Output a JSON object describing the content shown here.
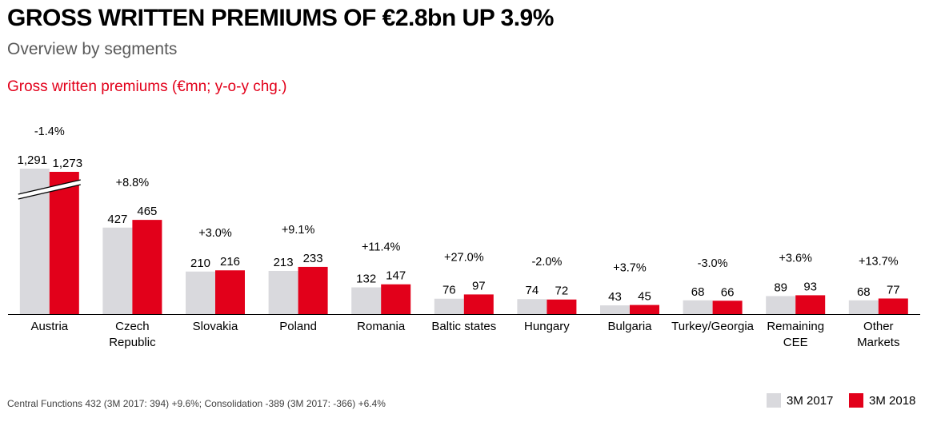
{
  "header": {
    "title": "GROSS WRITTEN PREMIUMS OF €2.8bn UP 3.9%",
    "subtitle": "Overview by segments"
  },
  "section_title": "Gross written premiums (€mn; y-o-y chg.)",
  "footnote": "Central Functions 432 (3M 2017: 394) +9.6%; Consolidation -389 (3M 2017: -366) +6.4%",
  "colors": {
    "series_2017": "#d9d9dd",
    "series_2018": "#e2001a",
    "section_title": "#e2001a"
  },
  "chart_data": {
    "type": "bar",
    "categories": [
      [
        "Austria"
      ],
      [
        "Czech",
        "Republic"
      ],
      [
        "Slovakia"
      ],
      [
        "Poland"
      ],
      [
        "Romania"
      ],
      [
        "Baltic states"
      ],
      [
        "Hungary"
      ],
      [
        "Bulgaria"
      ],
      [
        "Turkey/Georgia"
      ],
      [
        "Remaining",
        "CEE"
      ],
      [
        "Other",
        "Markets"
      ]
    ],
    "series": [
      {
        "name": "3M 2017",
        "values": [
          1291,
          427,
          210,
          213,
          132,
          76,
          74,
          43,
          68,
          89,
          68
        ],
        "labels": [
          "1,291",
          "427",
          "210",
          "213",
          "132",
          "76",
          "74",
          "43",
          "68",
          "89",
          "68"
        ]
      },
      {
        "name": "3M 2018",
        "values": [
          1273,
          465,
          216,
          233,
          147,
          97,
          72,
          45,
          66,
          93,
          77
        ],
        "labels": [
          "1,273",
          "465",
          "216",
          "233",
          "147",
          "97",
          "72",
          "45",
          "66",
          "93",
          "77"
        ]
      }
    ],
    "changes": [
      "-1.4%",
      "+8.8%",
      "+3.0%",
      "+9.1%",
      "+11.4%",
      "+27.0%",
      "-2.0%",
      "+3.7%",
      "-3.0%",
      "+3.6%",
      "+13.7%"
    ],
    "axis_break": {
      "category": "Austria"
    },
    "ylim": [
      0,
      500
    ],
    "grid": false,
    "legend_position": "bottom-right"
  }
}
